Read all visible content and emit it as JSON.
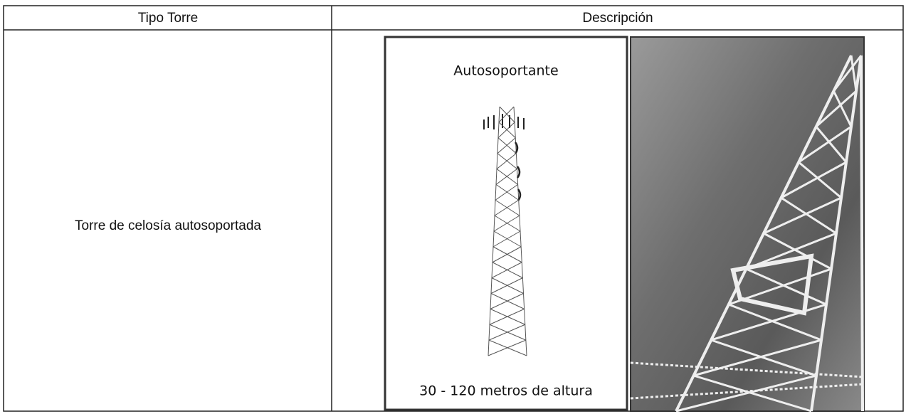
{
  "table": {
    "header": [
      "Tipo Torre",
      "Descripción"
    ],
    "rows": [
      [
        "Torre de celosía autosoportada"
      ]
    ]
  },
  "illustration": {
    "title": "Autosoportante",
    "caption": "30 - 120 metros de altura"
  }
}
